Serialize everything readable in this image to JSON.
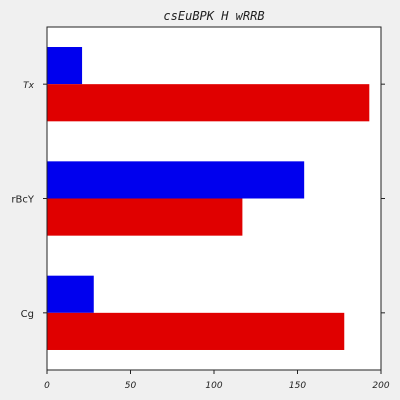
{
  "chart_data": {
    "type": "bar",
    "orientation": "horizontal",
    "title": "csEuBPK H wRRB",
    "xlabel": "",
    "ylabel": "",
    "categories": [
      "Tx",
      "rBcY",
      "Cg"
    ],
    "series": [
      {
        "color": "#0000ee",
        "values": [
          21,
          154,
          28
        ]
      },
      {
        "color": "#e00000",
        "values": [
          193,
          117,
          178
        ]
      }
    ],
    "xlim": [
      0,
      200
    ],
    "xticks": [
      0,
      50,
      100,
      150,
      200
    ],
    "grid": false,
    "legend": "none"
  }
}
